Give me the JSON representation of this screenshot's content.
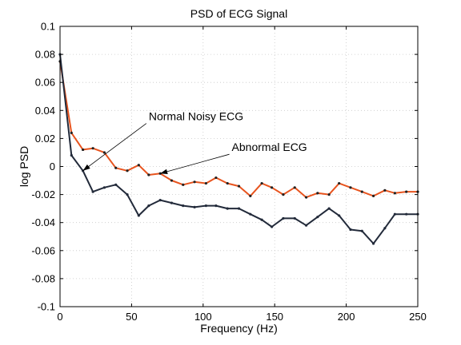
{
  "chart_data": {
    "type": "line",
    "title": "PSD of ECG Signal",
    "xlabel": "Frequency (Hz)",
    "ylabel": "log PSD",
    "xlim": [
      0,
      250
    ],
    "ylim": [
      -0.1,
      0.1
    ],
    "xticks": [
      0,
      50,
      100,
      150,
      200,
      250
    ],
    "yticks": [
      -0.1,
      -0.08,
      -0.06,
      -0.04,
      -0.02,
      0,
      0.02,
      0.04,
      0.06,
      0.08,
      0.1
    ],
    "xtick_labels": [
      "0",
      "50",
      "100",
      "150",
      "200",
      "250"
    ],
    "ytick_labels": [
      "-0.1",
      "-0.08",
      "-0.06",
      "-0.04",
      "-0.02",
      "0",
      "0.02",
      "0.04",
      "0.06",
      "0.08",
      "0.1"
    ],
    "grid": true,
    "series": [
      {
        "color": "#e8541e",
        "marker_color": "#222222",
        "x": [
          0,
          8,
          16,
          23,
          31,
          39,
          47,
          55,
          62,
          70,
          78,
          86,
          94,
          102,
          109,
          117,
          125,
          133,
          141,
          148,
          156,
          164,
          172,
          180,
          188,
          195,
          203,
          211,
          219,
          227,
          234,
          242,
          250
        ],
        "y": [
          0.075,
          0.024,
          0.012,
          0.013,
          0.01,
          -0.001,
          -0.003,
          0.001,
          -0.006,
          -0.005,
          -0.01,
          -0.013,
          -0.011,
          -0.012,
          -0.008,
          -0.012,
          -0.014,
          -0.021,
          -0.012,
          -0.015,
          -0.02,
          -0.015,
          -0.022,
          -0.019,
          -0.02,
          -0.012,
          -0.015,
          -0.018,
          -0.021,
          -0.017,
          -0.019,
          -0.018,
          -0.018
        ]
      },
      {
        "color": "#222a3a",
        "marker_color": "#222a3a",
        "x": [
          0,
          8,
          16,
          23,
          31,
          39,
          47,
          55,
          62,
          70,
          78,
          86,
          94,
          102,
          109,
          117,
          125,
          133,
          141,
          148,
          156,
          164,
          172,
          180,
          188,
          195,
          203,
          211,
          219,
          227,
          234,
          242,
          250
        ],
        "y": [
          0.08,
          0.008,
          -0.003,
          -0.018,
          -0.015,
          -0.013,
          -0.02,
          -0.035,
          -0.028,
          -0.024,
          -0.026,
          -0.028,
          -0.029,
          -0.028,
          -0.028,
          -0.03,
          -0.03,
          -0.034,
          -0.038,
          -0.043,
          -0.037,
          -0.037,
          -0.042,
          -0.036,
          -0.03,
          -0.035,
          -0.045,
          -0.046,
          -0.055,
          -0.044,
          -0.034,
          -0.034,
          -0.034
        ]
      }
    ],
    "annotations": [
      {
        "text": "Normal Noisy ECG",
        "text_x": 62,
        "text_y": 0.033,
        "arrow_x": 16,
        "arrow_y": -0.003
      },
      {
        "text": "Abnormal ECG",
        "text_x": 120,
        "text_y": 0.011,
        "arrow_x": 70,
        "arrow_y": -0.005
      }
    ]
  }
}
